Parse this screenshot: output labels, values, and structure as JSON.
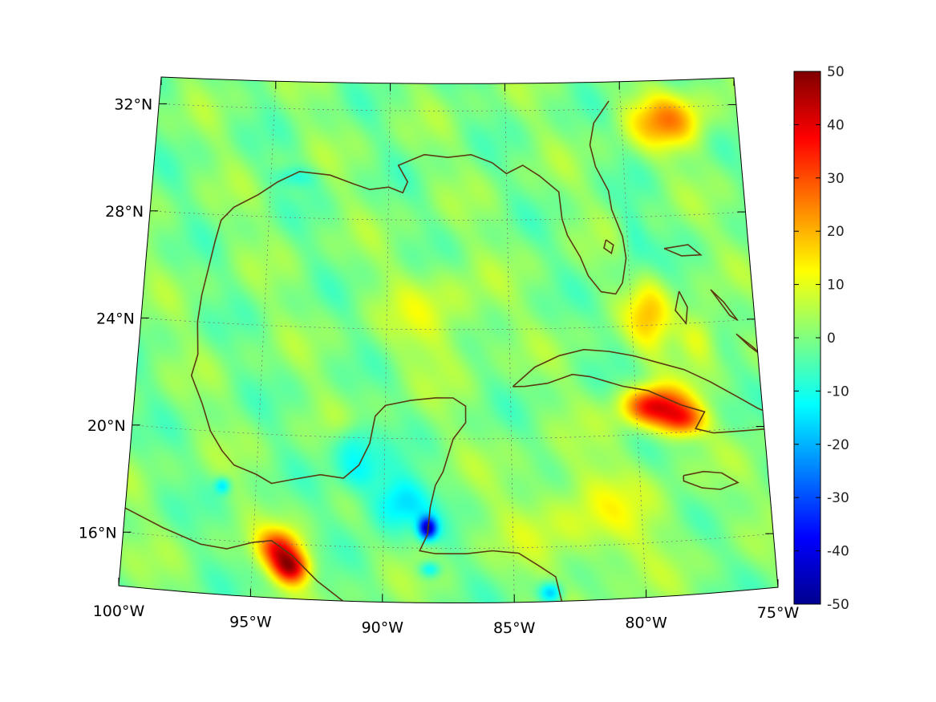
{
  "map": {
    "region": "Gulf of Mexico and Caribbean",
    "projection": "conic",
    "lon_range": [
      -100,
      -75
    ],
    "lat_range": [
      14,
      33
    ],
    "background_value": 0,
    "latitude_labels": [
      {
        "lat": 32,
        "text": "32°N"
      },
      {
        "lat": 28,
        "text": "28°N"
      },
      {
        "lat": 24,
        "text": "24°N"
      },
      {
        "lat": 20,
        "text": "20°N"
      },
      {
        "lat": 16,
        "text": "16°N"
      }
    ],
    "longitude_labels": [
      {
        "lon": -100,
        "text": "100°W"
      },
      {
        "lon": -95,
        "text": "95°W"
      },
      {
        "lon": -90,
        "text": "90°W"
      },
      {
        "lon": -85,
        "text": "85°W"
      },
      {
        "lon": -80,
        "text": "80°W"
      },
      {
        "lon": -75,
        "text": "75°W"
      }
    ],
    "coastline_color": "#5a3a10",
    "grid": true,
    "anomalies": [
      {
        "name": "cuba-east-high",
        "lon": -79.3,
        "lat": 21.0,
        "value": 38,
        "r_lon": 1.2,
        "r_lat": 0.7
      },
      {
        "name": "cuba-east-high-2",
        "lon": -78.2,
        "lat": 20.4,
        "value": 28,
        "r_lon": 0.9,
        "r_lat": 0.6
      },
      {
        "name": "mexico-pacific-high",
        "lon": -94.0,
        "lat": 15.8,
        "value": 32,
        "r_lon": 0.8,
        "r_lat": 0.7
      },
      {
        "name": "mexico-pacific-high-2",
        "lon": -93.5,
        "lat": 15.1,
        "value": 38,
        "r_lon": 0.7,
        "r_lat": 0.6
      },
      {
        "name": "atlantic-ne-high",
        "lon": -78.0,
        "lat": 31.5,
        "value": 22,
        "r_lon": 1.6,
        "r_lat": 1.0
      },
      {
        "name": "bahamas-high",
        "lon": -79.3,
        "lat": 24.3,
        "value": 15,
        "r_lon": 0.9,
        "r_lat": 1.4
      },
      {
        "name": "bahamas-high-2",
        "lon": -77.3,
        "lat": 23.5,
        "value": 13,
        "r_lon": 0.8,
        "r_lat": 1.0
      },
      {
        "name": "central-gulf-warm",
        "lon": -88.0,
        "lat": 24.5,
        "value": 8,
        "r_lon": 2.0,
        "r_lat": 1.8
      },
      {
        "name": "caribbean-warm",
        "lon": -82.0,
        "lat": 17.0,
        "value": 9,
        "r_lon": 3.0,
        "r_lat": 2.0
      },
      {
        "name": "yucatan-low",
        "lon": -88.3,
        "lat": 16.7,
        "value": -40,
        "r_lon": 0.35,
        "r_lat": 0.4
      },
      {
        "name": "yucatan-low-2",
        "lon": -89.5,
        "lat": 17.6,
        "value": -18,
        "r_lon": 1.2,
        "r_lat": 1.0
      },
      {
        "name": "campeche-low",
        "lon": -90.9,
        "lat": 18.8,
        "value": -12,
        "r_lon": 0.9,
        "r_lat": 0.8
      },
      {
        "name": "yucatan-w-low",
        "lon": -91.3,
        "lat": 19.8,
        "value": -10,
        "r_lon": 0.7,
        "r_lat": 0.7
      },
      {
        "name": "honduras-low",
        "lon": -83.6,
        "lat": 14.3,
        "value": -20,
        "r_lon": 0.45,
        "r_lat": 0.4
      },
      {
        "name": "veracruz-low",
        "lon": -96.3,
        "lat": 18.0,
        "value": -15,
        "r_lon": 0.3,
        "r_lat": 0.3
      },
      {
        "name": "louisiana-low",
        "lon": -94.0,
        "lat": 29.5,
        "value": -8,
        "r_lon": 1.0,
        "r_lat": 0.4
      },
      {
        "name": "florida-east-low",
        "lon": -79.8,
        "lat": 27.0,
        "value": -6,
        "r_lon": 0.6,
        "r_lat": 1.5
      },
      {
        "name": "belize-low",
        "lon": -88.2,
        "lat": 15.2,
        "value": -15,
        "r_lon": 0.4,
        "r_lat": 0.3
      }
    ]
  },
  "colorbar": {
    "min": -50,
    "max": 50,
    "tick_labels": [
      "50",
      "40",
      "30",
      "20",
      "10",
      "0",
      "-10",
      "-20",
      "-30",
      "-40",
      "-50"
    ],
    "colormap": "jet"
  }
}
